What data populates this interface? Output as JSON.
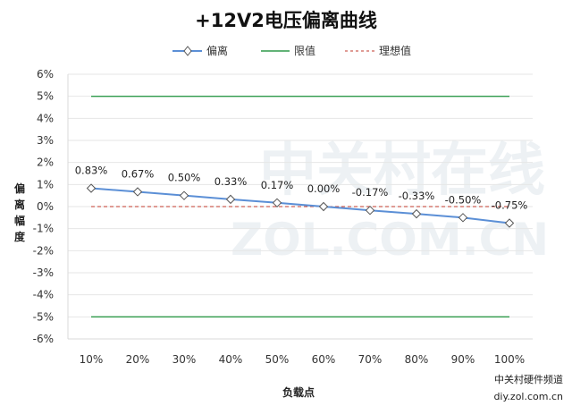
{
  "chart_data": {
    "type": "line",
    "title": "+12V2电压偏离曲线",
    "xlabel": "负载点",
    "ylabel": "偏离幅度",
    "categories": [
      "10%",
      "20%",
      "30%",
      "40%",
      "50%",
      "60%",
      "70%",
      "80%",
      "90%",
      "100%"
    ],
    "ylim": [
      -6,
      6
    ],
    "y_ticks": [
      "6%",
      "5%",
      "4%",
      "3%",
      "2%",
      "1%",
      "0%",
      "-1%",
      "-2%",
      "-3%",
      "-4%",
      "-5%",
      "-6%"
    ],
    "grid": true,
    "legend_position": "top",
    "series": [
      {
        "name": "偏离",
        "color": "#5b8fd6",
        "marker": "diamond",
        "values": [
          0.83,
          0.67,
          0.5,
          0.33,
          0.17,
          0.0,
          -0.17,
          -0.33,
          -0.5,
          -0.75
        ],
        "labels": [
          "0.83%",
          "0.67%",
          "0.50%",
          "0.33%",
          "0.17%",
          "0.00%",
          "-0.17%",
          "-0.33%",
          "-0.50%",
          "-0.75%"
        ]
      },
      {
        "name": "限值",
        "color": "#2e9a4a",
        "style": "solid",
        "values_upper": 5,
        "values_lower": -5
      },
      {
        "name": "理想值",
        "color": "#c0392b",
        "style": "dashed",
        "value": 0
      }
    ]
  },
  "watermark": {
    "line1": "中关村在线",
    "line2": "ZOL.COM.CN"
  },
  "credit": {
    "line1": "中关村硬件频道",
    "line2": "diy.zol.com.cn"
  }
}
